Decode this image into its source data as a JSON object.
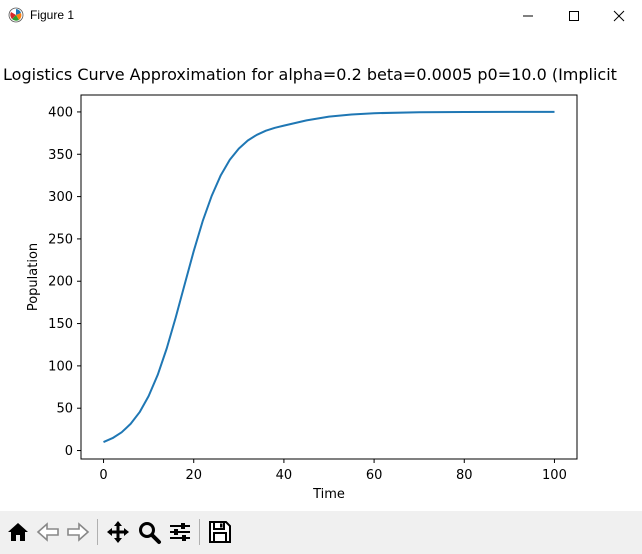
{
  "window": {
    "title": "Figure 1",
    "icons": {
      "app": "matplotlib-icon",
      "minimize": "minimize-icon",
      "maximize": "maximize-icon",
      "close": "close-icon"
    }
  },
  "toolbar": {
    "buttons": [
      {
        "name": "home-button",
        "icon": "home-icon"
      },
      {
        "name": "back-button",
        "icon": "back-arrow-icon"
      },
      {
        "name": "forward-button",
        "icon": "forward-arrow-icon"
      },
      {
        "name": "pan-button",
        "icon": "move-icon"
      },
      {
        "name": "zoom-button",
        "icon": "magnifier-icon"
      },
      {
        "name": "configure-subplots-button",
        "icon": "sliders-icon"
      },
      {
        "name": "save-button",
        "icon": "floppy-disk-icon"
      }
    ]
  },
  "chart_data": {
    "type": "line",
    "title": "Logistics Curve Approximation for alpha=0.2 beta=0.0005 p0=10.0 (Implicit",
    "xlabel": "Time",
    "ylabel": "Population",
    "xlim": [
      -5,
      105
    ],
    "ylim": [
      -10,
      420
    ],
    "xticks": [
      0,
      20,
      40,
      60,
      80,
      100
    ],
    "yticks": [
      0,
      50,
      100,
      150,
      200,
      250,
      300,
      350,
      400
    ],
    "grid": false,
    "series": [
      {
        "color": "#1f77b4",
        "x": [
          0,
          2,
          4,
          6,
          8,
          10,
          12,
          14,
          16,
          18,
          20,
          22,
          24,
          26,
          28,
          30,
          32,
          34,
          36,
          38,
          40,
          45,
          50,
          55,
          60,
          70,
          80,
          90,
          100
        ],
        "y": [
          10,
          14.7,
          21.6,
          31.5,
          45.3,
          64.3,
          89.3,
          120.5,
          157.1,
          196.5,
          235.5,
          271,
          301.2,
          325.3,
          343.4,
          356.7,
          366.2,
          373,
          377.8,
          381.2,
          383.9,
          390,
          394.5,
          397,
          398.5,
          399.6,
          399.9,
          400,
          400
        ]
      }
    ]
  }
}
